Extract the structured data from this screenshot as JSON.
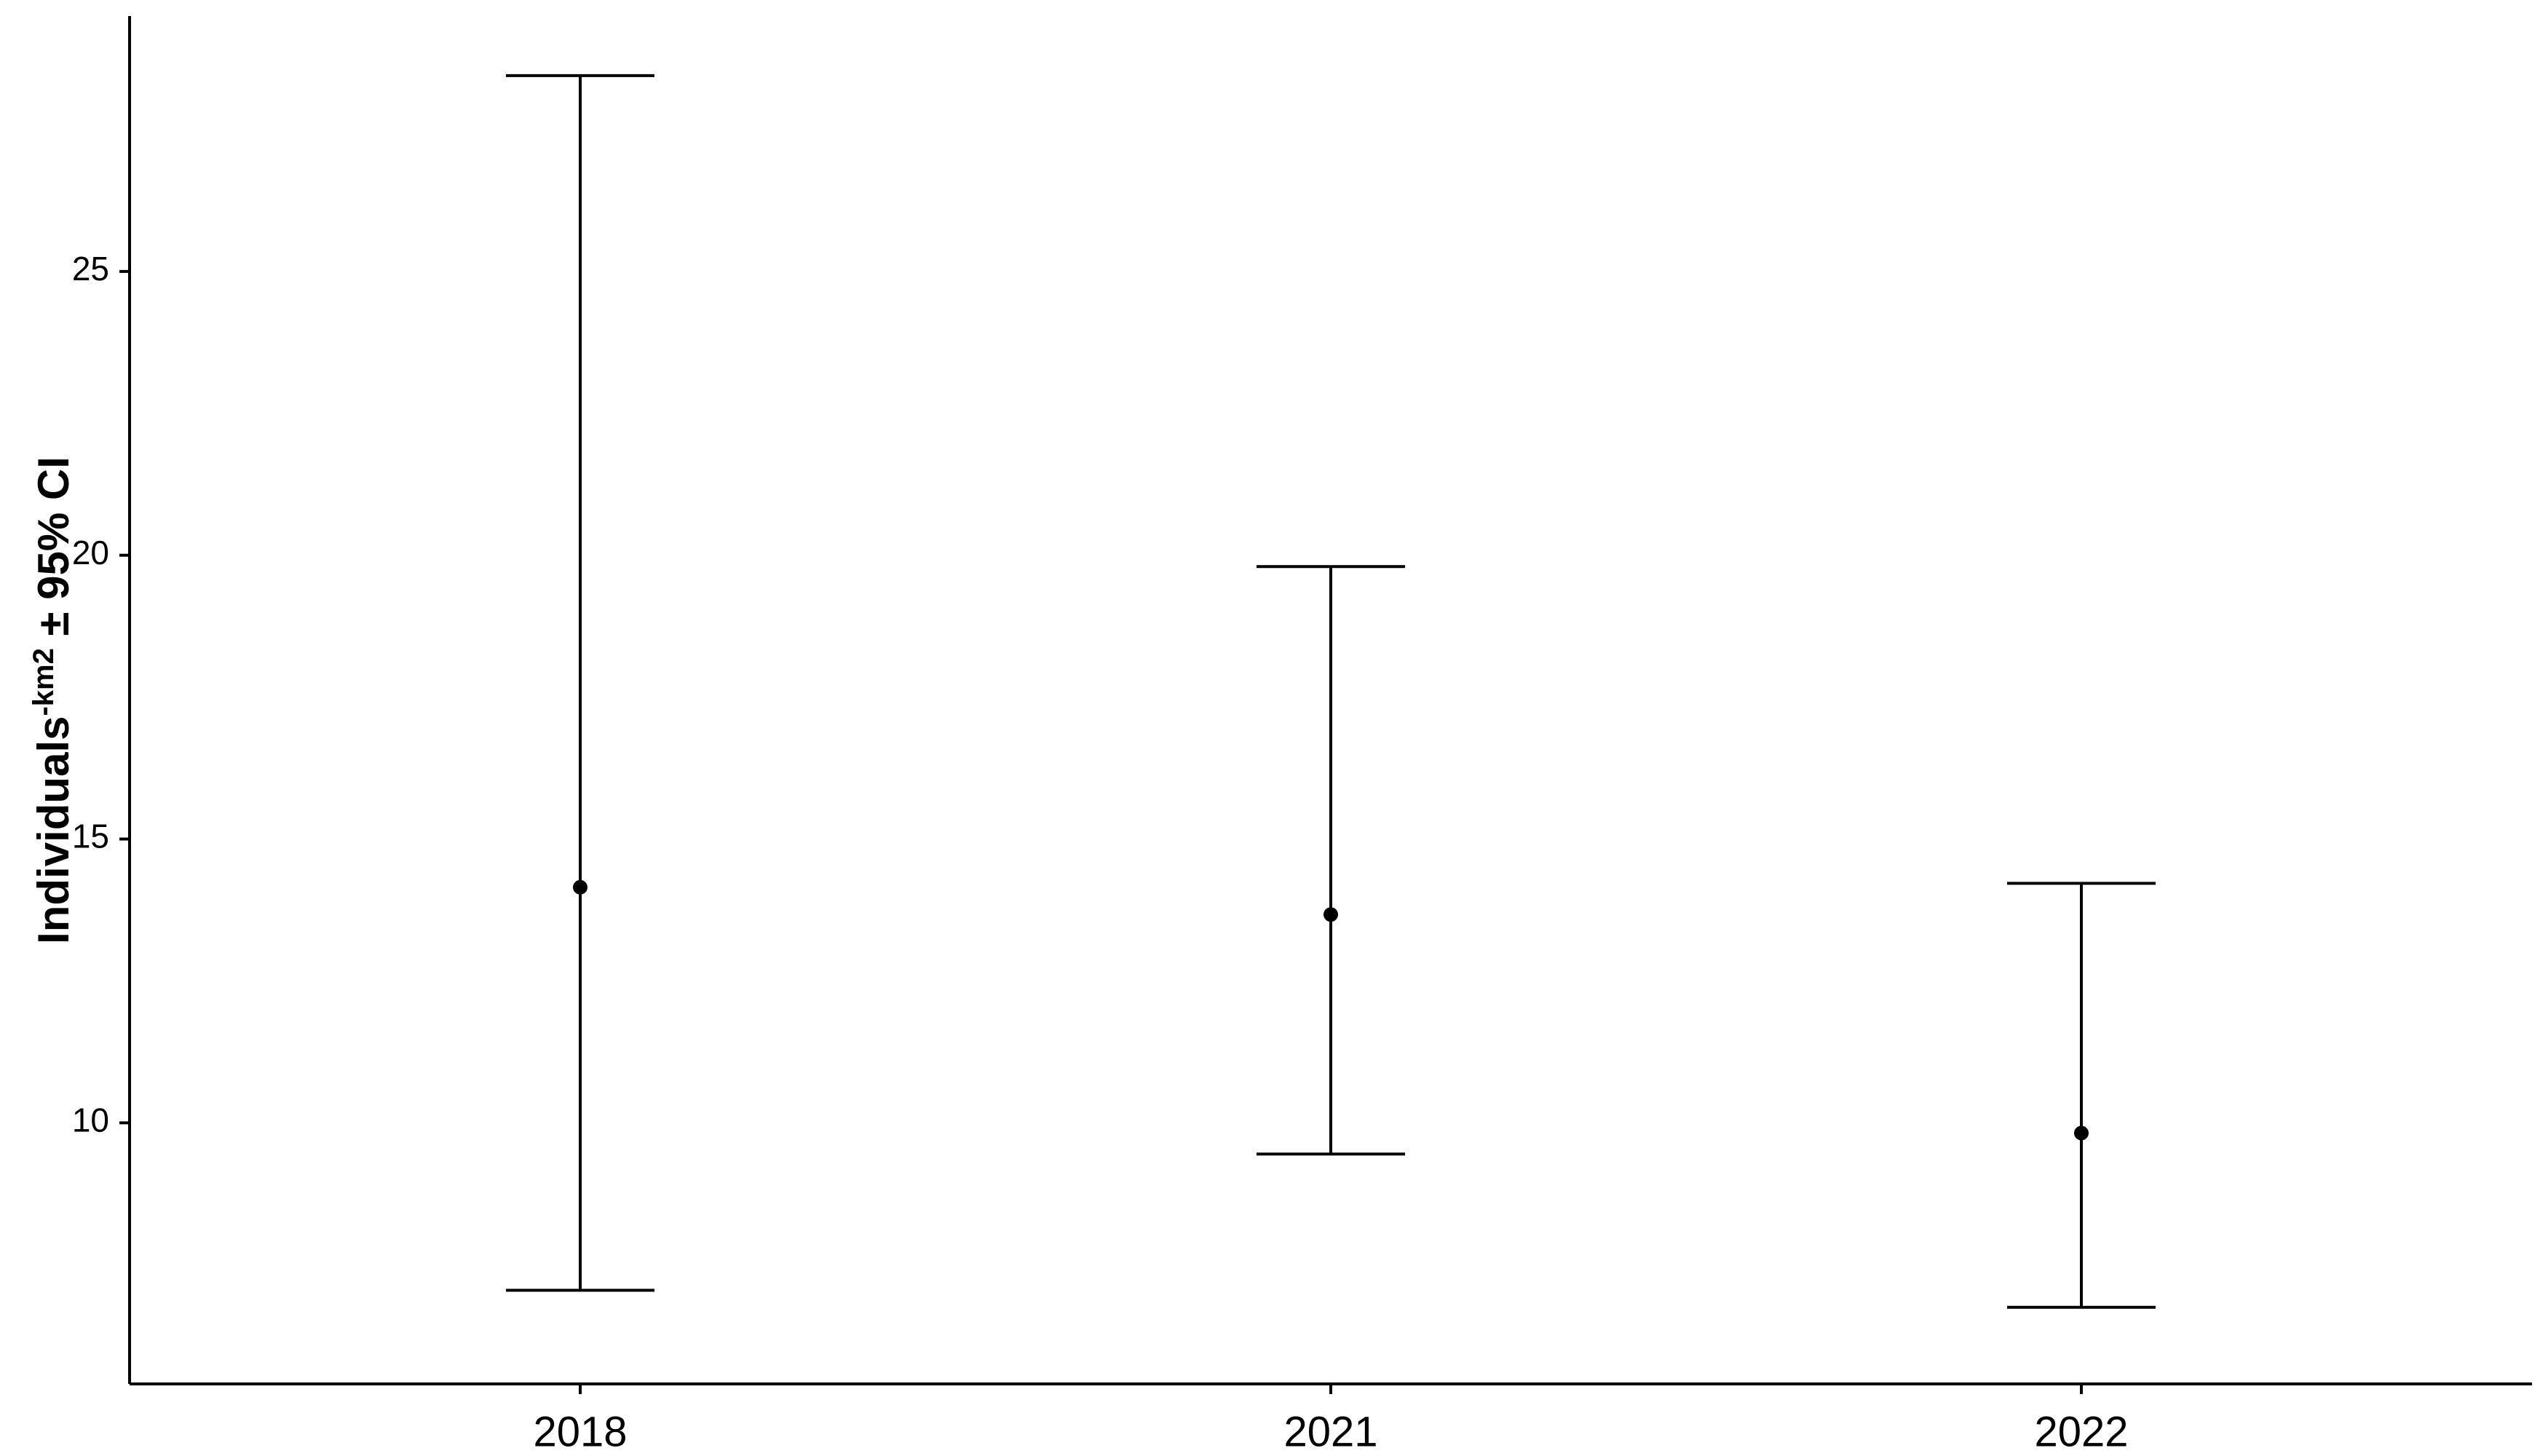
{
  "chart_data": {
    "type": "scatter",
    "error_bars": true,
    "categories": [
      "2018",
      "2021",
      "2022"
    ],
    "series": [
      {
        "values": [
          14.15,
          13.67,
          9.82
        ],
        "lower": [
          7.05,
          9.45,
          6.75
        ],
        "upper": [
          28.45,
          19.8,
          14.22
        ]
      }
    ],
    "title": "",
    "xlabel": "",
    "ylabel": {
      "main": "Individuals",
      "superscript": "-km2",
      "suffix": " ± 95% CI"
    },
    "yticks": [
      10,
      15,
      20,
      25
    ],
    "ylim": [
      5.4,
      29.5
    ],
    "grid": false,
    "legend": "none",
    "colors": {
      "marks": "#000000",
      "background": "#ffffff"
    }
  }
}
